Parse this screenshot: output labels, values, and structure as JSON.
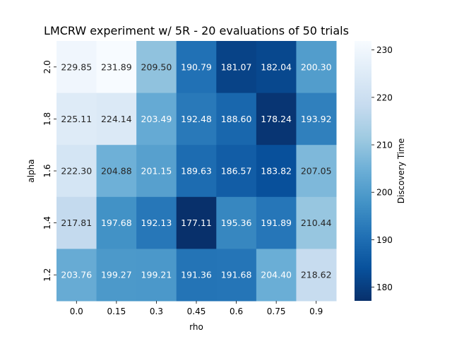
{
  "chart_data": {
    "type": "heatmap",
    "title": "LMCRW experiment w/ 5R - 20 evaluations of 50 trials",
    "xlabel": "rho",
    "ylabel": "alpha",
    "x_categories": [
      "0.0",
      "0.15",
      "0.3",
      "0.45",
      "0.6",
      "0.75",
      "0.9"
    ],
    "y_categories": [
      "2.0",
      "1.8",
      "1.6",
      "1.4",
      "1.2"
    ],
    "values": [
      [
        229.85,
        231.89,
        209.5,
        190.79,
        181.07,
        182.04,
        200.3
      ],
      [
        225.11,
        224.14,
        203.49,
        192.48,
        188.6,
        178.24,
        193.92
      ],
      [
        222.3,
        204.88,
        201.15,
        189.63,
        186.57,
        183.82,
        207.05
      ],
      [
        217.81,
        197.68,
        192.13,
        177.11,
        195.36,
        191.89,
        210.44
      ],
      [
        203.76,
        199.27,
        199.21,
        191.36,
        191.68,
        204.4,
        218.62
      ]
    ],
    "value_labels": [
      [
        "229.85",
        "231.89",
        "209.50",
        "190.79",
        "181.07",
        "182.04",
        "200.30"
      ],
      [
        "225.11",
        "224.14",
        "203.49",
        "192.48",
        "188.60",
        "178.24",
        "193.92"
      ],
      [
        "222.30",
        "204.88",
        "201.15",
        "189.63",
        "186.57",
        "183.82",
        "207.05"
      ],
      [
        "217.81",
        "197.68",
        "192.13",
        "177.11",
        "195.36",
        "191.89",
        "210.44"
      ],
      [
        "203.76",
        "199.27",
        "199.21",
        "191.36",
        "191.68",
        "204.40",
        "218.62"
      ]
    ],
    "colorbar": {
      "label": "Discovery Time",
      "colormap": "Blues_r",
      "vmin": 177.11,
      "vmax": 231.89,
      "ticks": [
        "180",
        "190",
        "200",
        "210",
        "220",
        "230"
      ]
    },
    "grid": false
  }
}
